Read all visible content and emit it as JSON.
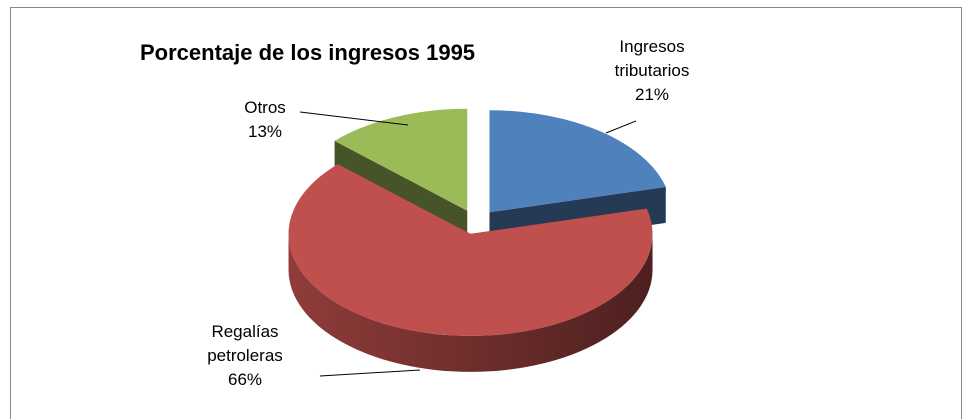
{
  "chart_data": {
    "type": "pie",
    "title": "Porcentaje de los ingresos 1995",
    "categories": [
      "Ingresos tributarios",
      "Regalías petroleras",
      "Otros"
    ],
    "values": [
      21,
      66,
      13
    ],
    "value_labels": [
      "21%",
      "66%",
      "13%"
    ],
    "colors": [
      "#4f81bd",
      "#c0504d",
      "#9bbb59"
    ]
  }
}
